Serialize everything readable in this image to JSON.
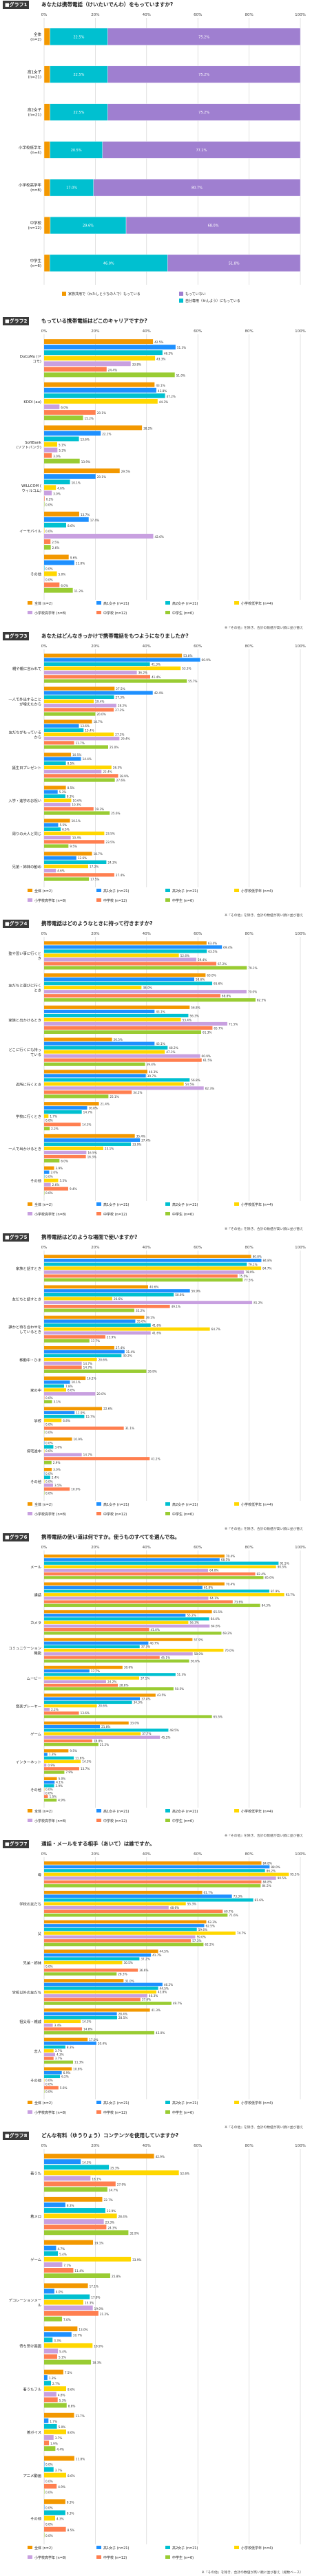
{
  "tiers": [
    "全体 (n=2)",
    "高1女子 (n=21)",
    "高2女子 (n=21)",
    "小学校低学年 (n=4)",
    "小学校高学年 (n=8)",
    "中学校 (n=12)",
    "中学生 (n=6)"
  ],
  "colors": [
    "#f39800",
    "#1e90ff",
    "#00c0d0",
    "#ffd700",
    "#c8a0e0",
    "#ff7f50",
    "#99cc33"
  ],
  "chart_data": [
    {
      "type": "bar",
      "id": "g1",
      "title_tag": "■グラフ1",
      "title": "あなたは携帯電話（けいたいでんわ）をもっていますか?",
      "categories": [
        "全体\n(n=2)",
        "高1女子\n(n=21)",
        "高2女子\n(n=21)",
        "小学校低学年\n(n=4)",
        "小学校高学年\n(n=8)",
        "中学校\n(n=12)",
        "中学生\n(n=6)"
      ],
      "series": [
        {
          "name": "家族共用で（わたしとうちの人で）もっている",
          "values": [
            2.3,
            2.3,
            2.3,
            2.3,
            2.3,
            2.4,
            2.2
          ]
        },
        {
          "name": "自分専用（せんよう）にもっている",
          "values": [
            22.5,
            22.5,
            22.5,
            20.5,
            17.0,
            29.6,
            46.0
          ]
        },
        {
          "name": "もっていない",
          "values": [
            75.2,
            75.2,
            75.2,
            77.2,
            80.7,
            68.0,
            51.8
          ]
        }
      ],
      "axis": [
        0,
        100
      ]
    },
    {
      "type": "bar",
      "id": "g2",
      "title_tag": "■グラフ2",
      "title": "もっている携帯電話はどこのキャリアですか?",
      "categories": [
        "DoCoMo (ドコモ)",
        "KDDI (au)",
        "SoftBank (ソフトバンク)",
        "WILLCOM (ウィルコム)",
        "イーモバイル",
        "その他"
      ],
      "values_per_tier": [
        [
          42.5,
          43.1,
          38.2,
          29.5,
          13.7,
          9.6
        ],
        [
          51.3,
          43.8,
          22.1,
          20.1,
          17.4,
          11.8
        ],
        [
          46.2,
          47.2,
          13.6,
          10.1,
          8.6,
          0.0
        ],
        [
          43.3,
          44.3,
          5.1,
          4.6,
          0.0,
          5.0
        ],
        [
          33.8,
          6.0,
          5.2,
          3.0,
          42.6,
          0.0
        ],
        [
          24.4,
          20.1,
          3.0,
          0.2,
          2.5,
          6.0
        ],
        [
          51.0,
          15.2,
          13.9,
          0.0,
          2.6,
          11.2
        ]
      ],
      "axis": [
        0,
        100
      ],
      "note": "『その他』を除き、合計の数値が高い順に並び替え"
    },
    {
      "type": "bar",
      "id": "g3",
      "title_tag": "■グラフ3",
      "title": "あなたはどんなきっかけで携帯電話をもつようになりましたか?",
      "categories": [
        "親や親に言われて",
        "一人で外出することが増えたから",
        "友だちがもっているから",
        "誕生日プレゼント",
        "入学・進学のお祝い",
        "周りの大人と同じ",
        "兄弟・姉妹の勧め"
      ],
      "values_per_tier": [
        [
          53.8,
          27.5,
          18.7,
          10.5,
          8.5,
          10.1,
          18.7
        ],
        [
          60.9,
          42.4,
          13.6,
          14.4,
          5.3,
          5.5,
          12.6
        ],
        [
          41.3,
          27.3,
          15.4,
          8.5,
          8.3,
          6.5,
          24.3
        ],
        [
          53.3,
          19.4,
          27.2,
          26.3,
          10.6,
          23.5,
          17.2
        ],
        [
          36.2,
          28.2,
          29.4,
          22.4,
          10.3,
          10.4,
          4.6
        ],
        [
          41.4,
          27.2,
          11.7,
          28.9,
          19.3,
          23.5,
          27.4
        ],
        [
          55.7,
          20.0,
          25.0,
          27.6,
          25.6,
          9.5,
          17.5
        ]
      ],
      "axis": [
        0,
        100
      ],
      "note": "『その他』を除き、合計の数値が高い順に並び替え"
    },
    {
      "type": "bar",
      "id": "g4",
      "title_tag": "■グラフ4",
      "title": "携帯電話はどのようなときに持って行きますか?",
      "categories": [
        "塾や習い事に行くとき",
        "友だちと遊びに行くとき",
        "家族と出かけるとき",
        "どこに行くにも持っている",
        "近所に行くとき",
        "学校に行くとき",
        "一人で出かけるとき",
        "その他"
      ],
      "values_per_tier": [
        [
          63.4,
          63.0,
          56.8,
          26.5,
          40.3,
          21.4,
          35.4,
          3.9
        ],
        [
          69.4,
          58.6,
          43.1,
          43.1,
          39.7,
          16.8,
          37.4,
          2.0
        ],
        [
          63.5,
          65.6,
          56.3,
          48.2,
          56.8,
          14.7,
          33.9,
          0.0
        ],
        [
          52.6,
          38.0,
          53.4,
          47.1,
          54.5,
          1.7,
          23.1,
          5.5
        ],
        [
          59.4,
          79.0,
          71.5,
          60.9,
          62.3,
          0.0,
          16.5,
          2.6
        ],
        [
          67.2,
          68.8,
          65.7,
          61.5,
          34.2,
          14.3,
          16.3,
          9.4
        ],
        [
          79.1,
          82.5,
          61.3,
          39.4,
          25.1,
          2.2,
          6.0,
          0.0
        ]
      ],
      "axis": [
        0,
        100
      ],
      "note": "『その他』を除き、合計の数値が高い順に並び替え"
    },
    {
      "type": "bar",
      "id": "g5",
      "title_tag": "■グラフ5",
      "title": "携帯電話はどのような場面で使いますか?",
      "categories": [
        "家族と話すとき",
        "友だちと話すとき",
        "誰かと待ち合わせをしているとき",
        "移動中・ひま",
        "家の中",
        "学校",
        "帰宅途中",
        "その他"
      ],
      "values_per_tier": [
        [
          80.8,
          40.6,
          39.1,
          27.4,
          16.2,
          22.6,
          10.9,
          3.0
        ],
        [
          84.8,
          56.9,
          35.6,
          31.4,
          10.1,
          11.9,
          0.0,
          0.0
        ],
        [
          79.1,
          50.6,
          41.6,
          30.2,
          7.8,
          15.7,
          3.6,
          2.4
        ],
        [
          84.7,
          26.6,
          64.7,
          20.6,
          8.6,
          6.8,
          0.0,
          0.0
        ],
        [
          78.0,
          81.2,
          41.6,
          14.7,
          20.0,
          0.0,
          14.7,
          3.5
        ],
        [
          75.5,
          49.1,
          23.9,
          14.7,
          0.0,
          31.1,
          41.2,
          10.0
        ],
        [
          77.5,
          35.2,
          17.7,
          39.9,
          3.1,
          0.0,
          2.9,
          0.0
        ]
      ],
      "axis": [
        0,
        100
      ],
      "note": "『その他』を除き、合計の数値が高い順に並び替え"
    },
    {
      "type": "bar",
      "id": "g6",
      "title_tag": "■グラフ6",
      "title": "携帯電話の使い道は何ですか。使うものすべてを選んでね。",
      "categories": [
        "メール",
        "通話",
        "カメラ",
        "コミュニケーション機能",
        "ムービー",
        "音楽プレーヤー",
        "ゲーム",
        "インターネット",
        "その他"
      ],
      "values_per_tier": [
        [
          70.4,
          70.4,
          65.5,
          57.9,
          30.6,
          43.5,
          33.0,
          9.5,
          5.0
        ],
        [
          68.5,
          61.8,
          55.2,
          40.7,
          17.7,
          37.4,
          21.8,
          1.3,
          4.1
        ],
        [
          91.5,
          87.9,
          64.4,
          37.3,
          51.3,
          34.3,
          48.5,
          11.6,
          3.9
        ],
        [
          90.5,
          93.7,
          56.3,
          70.0,
          37.1,
          20.6,
          37.7,
          14.3,
          0.0
        ],
        [
          64.0,
          64.1,
          64.6,
          58.0,
          24.2,
          2.2,
          45.2,
          0.9,
          0.0
        ],
        [
          82.4,
          73.6,
          41.0,
          45.1,
          28.8,
          13.6,
          18.8,
          13.7,
          1.5
        ],
        [
          85.6,
          84.3,
          69.2,
          56.6,
          50.5,
          65.5,
          21.2,
          7.9,
          4.9
        ]
      ],
      "axis": [
        0,
        100
      ],
      "note": "『その他』を除き、合計の数値が高い順に並び替え"
    },
    {
      "type": "bar",
      "id": "g7",
      "title_tag": "■グラフ7",
      "title": "通話・メールをする相手（あいて）は誰ですか。",
      "categories": [
        "母",
        "学校の友だち",
        "父",
        "兄弟・姉妹",
        "学校以外の友だち",
        "祖父母・親戚",
        "恋人",
        "その他"
      ],
      "values_per_tier": [
        [
          84.8,
          61.7,
          63.3,
          44.5,
          31.0,
          41.3,
          17.0,
          10.8
        ],
        [
          88.0,
          73.3,
          62.5,
          41.7,
          46.2,
          28.4,
          20.4,
          6.9
        ],
        [
          86.2,
          81.6,
          59.6,
          37.2,
          44.5,
          28.5,
          8.3,
          6.2
        ],
        [
          95.5,
          55.3,
          74.7,
          30.5,
          43.8,
          14.3,
          3.7,
          0.0
        ],
        [
          90.5,
          48.6,
          59.0,
          0.0,
          40.3,
          3.4,
          4.3,
          0.0
        ],
        [
          84.8,
          69.7,
          57.3,
          36.6,
          37.6,
          14.8,
          3.7,
          5.6
        ],
        [
          84.5,
          71.6,
          62.2,
          28.3,
          49.7,
          43.0,
          11.3,
          0.0
        ]
      ],
      "axis": [
        0,
        100
      ],
      "note": "『その他』を除き、合計の数値が高い順に並び替え"
    },
    {
      "type": "bar",
      "id": "g8",
      "title_tag": "■グラフ8",
      "title": "どんな有料（ゆうりょう）コンテンツを使用していますか?",
      "categories": [
        "着うた",
        "着メロ",
        "ゲーム",
        "デコレーションメール",
        "待ち受け画面",
        "着うたフル",
        "着ボイス",
        "アニメ動画",
        "その他"
      ],
      "values_per_tier": [
        [
          42.9,
          22.7,
          19.1,
          17.1,
          13.0,
          7.5,
          11.7,
          11.8,
          8.3
        ],
        [
          14.3,
          8.3,
          4.7,
          4.0,
          10.7,
          1.3,
          1.7,
          0.0,
          0.0
        ],
        [
          25.3,
          23.9,
          5.4,
          17.8,
          3.3,
          2.7,
          5.0,
          3.7,
          8.3
        ],
        [
          52.6,
          28.4,
          33.9,
          15.3,
          18.9,
          8.6,
          8.6,
          8.6,
          4.3
        ],
        [
          18.1,
          23.3,
          7.1,
          19.0,
          5.4,
          4.8,
          3.7,
          0.0,
          0.0
        ],
        [
          27.9,
          24.3,
          11.4,
          21.2,
          5.1,
          5.3,
          1.9,
          4.9,
          8.5
        ],
        [
          24.7,
          32.9,
          25.8,
          7.0,
          18.3,
          8.8,
          4.4,
          0.0,
          0.0
        ]
      ],
      "axis": [
        0,
        100
      ],
      "note": "『その他』を除き、合計の数値が高い順に並び替え（総数ベース）"
    }
  ]
}
